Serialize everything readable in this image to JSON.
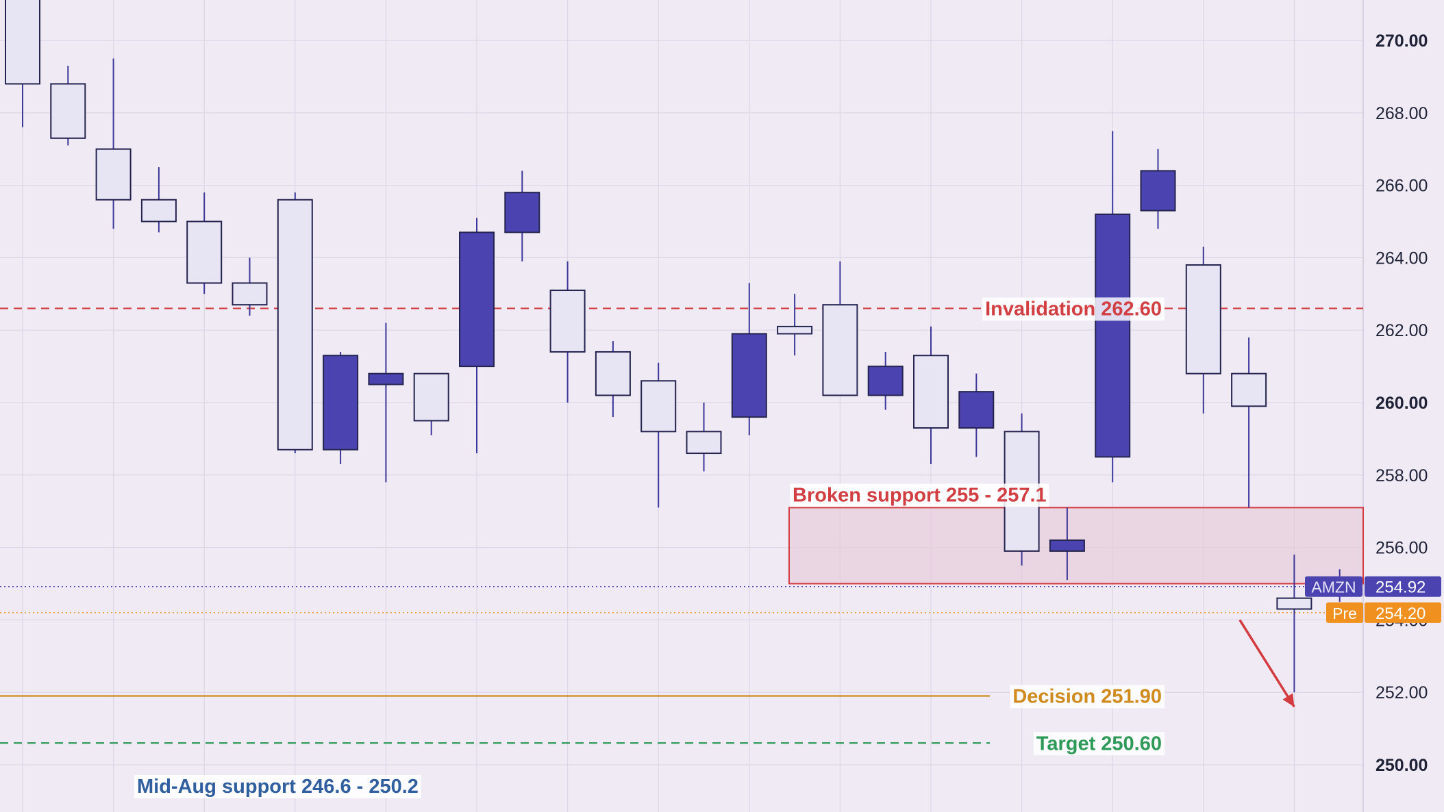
{
  "chart_data": {
    "type": "candlestick",
    "symbol": "AMZN",
    "ylim": [
      248.8,
      271.1
    ],
    "y_ticks": [
      250,
      252,
      254,
      256,
      258,
      260,
      262,
      264,
      266,
      268,
      270
    ],
    "y_tick_labels": [
      "250.00",
      "252.00",
      "254.00",
      "256.00",
      "258.00",
      "260.00",
      "262.00",
      "264.00",
      "266.00",
      "268.00",
      "270.00"
    ],
    "bold_ticks": [
      250,
      260,
      270
    ],
    "grid": true,
    "candles": [
      {
        "o": 268.8,
        "h": 271.5,
        "l": 267.6,
        "c": 271.5
      },
      {
        "o": 267.3,
        "h": 269.3,
        "l": 267.1,
        "c": 268.8
      },
      {
        "o": 265.6,
        "h": 269.5,
        "l": 264.8,
        "c": 267.0
      },
      {
        "o": 265.0,
        "h": 266.5,
        "l": 264.7,
        "c": 265.6
      },
      {
        "o": 263.3,
        "h": 265.8,
        "l": 263.0,
        "c": 265.0
      },
      {
        "o": 262.7,
        "h": 264.0,
        "l": 262.4,
        "c": 263.3
      },
      {
        "o": 258.7,
        "h": 265.8,
        "l": 258.6,
        "c": 265.6
      },
      {
        "o": 261.3,
        "h": 261.4,
        "l": 258.3,
        "c": 258.7
      },
      {
        "o": 260.8,
        "h": 262.2,
        "l": 257.8,
        "c": 260.5
      },
      {
        "o": 259.5,
        "h": 260.8,
        "l": 259.1,
        "c": 260.8
      },
      {
        "o": 264.7,
        "h": 265.1,
        "l": 258.6,
        "c": 261.0
      },
      {
        "o": 265.8,
        "h": 266.4,
        "l": 263.9,
        "c": 264.7
      },
      {
        "o": 261.4,
        "h": 263.9,
        "l": 260.0,
        "c": 263.1
      },
      {
        "o": 260.2,
        "h": 261.7,
        "l": 259.6,
        "c": 261.4
      },
      {
        "o": 259.2,
        "h": 261.1,
        "l": 257.1,
        "c": 260.6
      },
      {
        "o": 258.6,
        "h": 260.0,
        "l": 258.1,
        "c": 259.2
      },
      {
        "o": 261.9,
        "h": 263.3,
        "l": 259.1,
        "c": 259.6
      },
      {
        "o": 261.9,
        "h": 263.0,
        "l": 261.3,
        "c": 262.1
      },
      {
        "o": 260.2,
        "h": 263.9,
        "l": 260.2,
        "c": 262.7
      },
      {
        "o": 261.0,
        "h": 261.4,
        "l": 259.8,
        "c": 260.2
      },
      {
        "o": 259.3,
        "h": 262.1,
        "l": 258.3,
        "c": 261.3
      },
      {
        "o": 260.3,
        "h": 260.8,
        "l": 258.5,
        "c": 259.3
      },
      {
        "o": 255.9,
        "h": 259.7,
        "l": 255.5,
        "c": 259.2
      },
      {
        "o": 256.2,
        "h": 257.1,
        "l": 255.1,
        "c": 255.9
      },
      {
        "o": 265.2,
        "h": 267.5,
        "l": 257.8,
        "c": 258.5
      },
      {
        "o": 266.4,
        "h": 267.0,
        "l": 264.8,
        "c": 265.3
      },
      {
        "o": 260.8,
        "h": 264.3,
        "l": 259.7,
        "c": 263.8
      },
      {
        "o": 259.9,
        "h": 261.8,
        "l": 257.1,
        "c": 260.8
      },
      {
        "o": 254.3,
        "h": 255.8,
        "l": 252.0,
        "c": 254.6
      },
      {
        "o": 255.0,
        "h": 255.4,
        "l": 254.5,
        "c": 254.92
      }
    ],
    "colors": {
      "up_fill": "#e7e4f3",
      "down_fill": "#4b44b0",
      "outline": "#252450",
      "wick": "#3c379a",
      "background": "#efeaf4",
      "grid": "#dcd6e6",
      "axis_text": "#1f2237",
      "invalidation": "#d13f43",
      "decision": "#d08b1f",
      "target": "#2e9a58",
      "zone_fill": "#e7c9d9",
      "zone_border": "#d43c43",
      "price_tag": "#4b44b0",
      "pre_tag": "#f0901e",
      "support_text": "#2f5f9e",
      "arrow": "#d33b3f"
    },
    "levels": [
      {
        "key": "invalidation",
        "value": 262.6,
        "label": "Invalidation 262.60",
        "style": "dashed"
      },
      {
        "key": "decision",
        "value": 251.9,
        "label": "Decision 251.90",
        "style": "solid"
      },
      {
        "key": "target",
        "value": 250.6,
        "label": "Target 250.60",
        "style": "dashed"
      }
    ],
    "zone": {
      "low": 255.0,
      "high": 257.1,
      "label": "Broken support 255 - 257.1"
    },
    "support_label": "Mid-Aug support 246.6 - 250.2",
    "last_price": {
      "value": 254.92,
      "symbol_label": "AMZN",
      "price_label": "254.92"
    },
    "pre_price": {
      "value": 254.2,
      "label": "Pre",
      "price_label": "254.20"
    },
    "arrow": {
      "from_index": 26.8,
      "from_value": 254.0,
      "to_index": 28.0,
      "to_value": 251.6
    }
  }
}
